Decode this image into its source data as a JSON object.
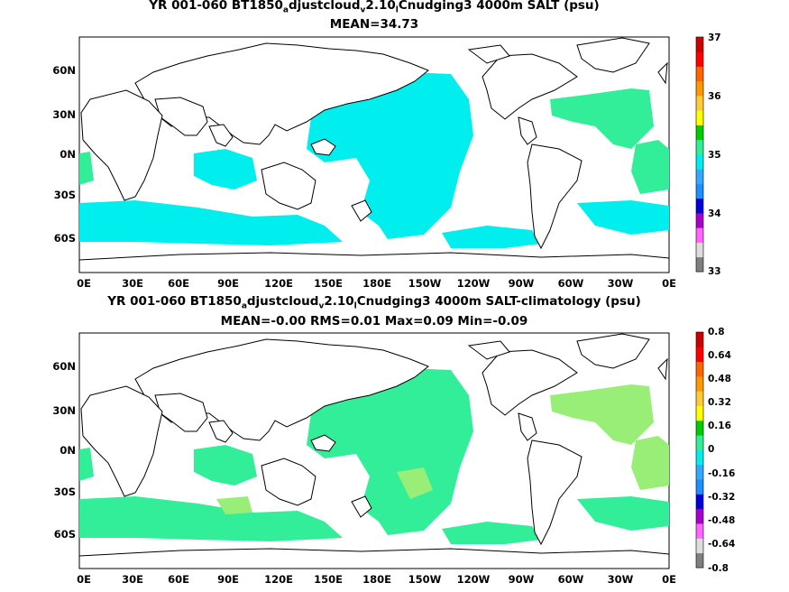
{
  "panels": [
    {
      "title": {
        "a": "YR 001-060 BT1850",
        "s1": "a",
        "b": "djustcloud",
        "s2": "v",
        "c": "2.10",
        "s3": "l",
        "d": "Cnudging3 4000m SALT (psu)"
      },
      "stats": "MEAN=34.73",
      "colorbar": {
        "labels": [
          "37",
          "36",
          "35",
          "34",
          "33"
        ]
      }
    },
    {
      "title": {
        "a": "YR 001-060 BT1850",
        "s1": "a",
        "b": "djustcloud",
        "s2": "v",
        "c": "2.10",
        "s3": "l",
        "d": "Cnudging3 4000m SALT-climatology (psu)"
      },
      "stats": "MEAN=-0.00   RMS=0.01   Max=0.09   Min=-0.09",
      "colorbar": {
        "labels": [
          "0.8",
          "0.64",
          "0.48",
          "0.32",
          "0.16",
          "0",
          "-0.16",
          "-0.32",
          "-0.48",
          "-0.64",
          "-0.8"
        ]
      }
    }
  ],
  "lon_labels": [
    "0E",
    "30E",
    "60E",
    "90E",
    "120E",
    "150E",
    "180E",
    "150W",
    "120W",
    "90W",
    "60W",
    "30W",
    "0E"
  ],
  "lat_labels": [
    "60N",
    "30N",
    "0N",
    "30S",
    "60S"
  ],
  "colors": {
    "panel1_fill": "#00eeee",
    "panel1_alt": "#33ee99",
    "panel2_fill": "#33ee99",
    "panel2_alt": "#99ee77",
    "colorbar": [
      "#7f7f7f",
      "#dddddd",
      "#ff66ff",
      "#aa00cc",
      "#0000dd",
      "#1e8fff",
      "#33aaff",
      "#00eeee",
      "#33ee99",
      "#00cc00",
      "#ffff00",
      "#ffcc33",
      "#ff9900",
      "#ff6600",
      "#ff0000",
      "#cc0000"
    ]
  }
}
